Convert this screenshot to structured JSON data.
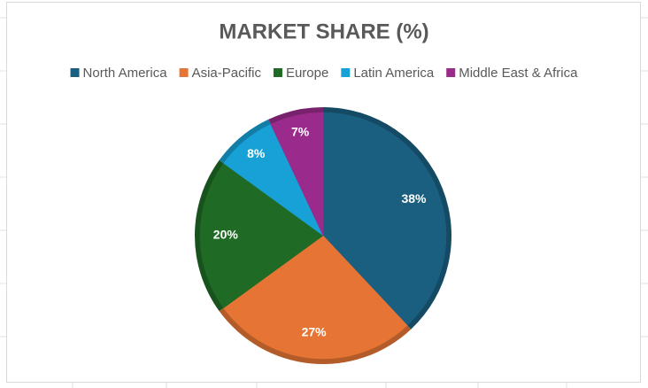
{
  "chart_data": {
    "type": "pie",
    "title": "MARKET SHARE (%)",
    "categories": [
      "North America",
      "Asia-Pacific",
      "Europe",
      "Latin America",
      "Middle East & Africa"
    ],
    "values": [
      38,
      27,
      20,
      8,
      7
    ],
    "value_labels": [
      "38%",
      "27%",
      "20%",
      "8%",
      "7%"
    ],
    "colors": [
      "#1b5f80",
      "#e67535",
      "#1f6b25",
      "#17a1d6",
      "#9a2a8c"
    ],
    "legend": "top"
  }
}
